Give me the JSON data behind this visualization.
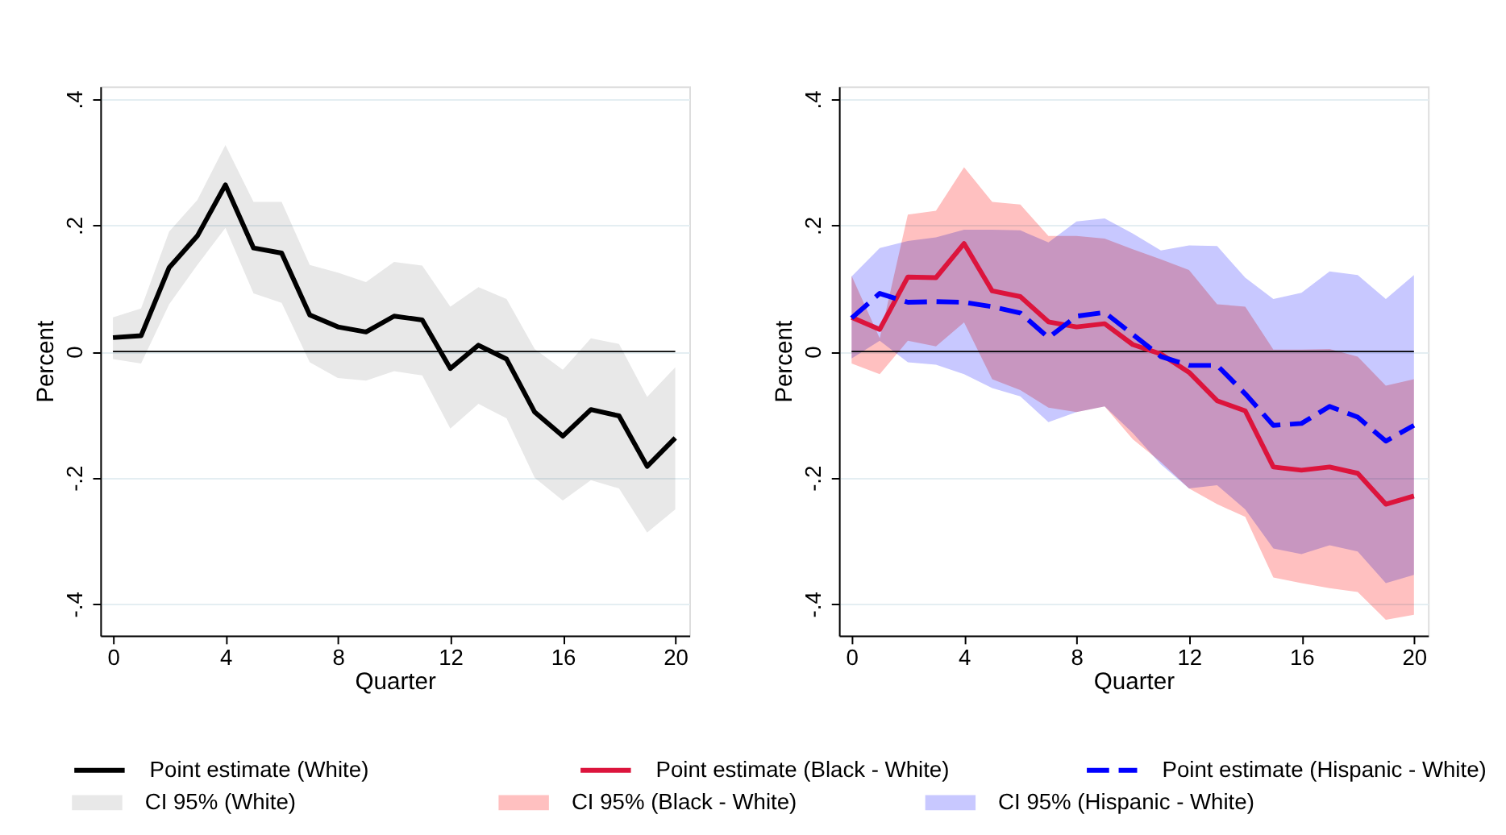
{
  "chart_data": [
    {
      "type": "line",
      "xlabel": "Quarter",
      "ylabel": "Percent",
      "x": [
        0,
        1,
        2,
        3,
        4,
        5,
        6,
        7,
        8,
        9,
        10,
        11,
        12,
        13,
        14,
        15,
        16,
        17,
        18,
        19,
        20
      ],
      "xlim": [
        -0.45,
        20.5
      ],
      "xticks": [
        0,
        4,
        8,
        12,
        16,
        20
      ],
      "ylim": [
        -0.45,
        0.42
      ],
      "yticks": [
        {
          "value": -0.4,
          "label": "-.4"
        },
        {
          "value": -0.2,
          "label": "-.2"
        },
        {
          "value": 0,
          "label": "0"
        },
        {
          "value": 0.2,
          "label": ".2"
        },
        {
          "value": 0.4,
          "label": ".4"
        }
      ],
      "grid": "y",
      "legend": "bottom",
      "ref_lines": [
        {
          "axis": "y",
          "value": 0,
          "color": "#000000"
        }
      ],
      "series": [
        {
          "name": "Point estimate (White)",
          "type": "line",
          "color": "#000000",
          "line_style": "solid",
          "values": [
            0.022,
            0.025,
            0.133,
            0.183,
            0.264,
            0.164,
            0.156,
            0.058,
            0.039,
            0.031,
            0.056,
            0.05,
            -0.027,
            0.01,
            -0.012,
            -0.096,
            -0.134,
            -0.092,
            -0.102,
            -0.182,
            -0.137
          ]
        },
        {
          "name": "CI 95% (White)",
          "type": "area",
          "color": "#e8e8e8",
          "values": [
            null,
            null,
            null,
            null,
            null,
            null,
            null,
            null,
            null,
            null,
            null,
            null,
            null,
            null,
            null,
            null,
            null,
            null,
            null,
            null,
            null
          ],
          "lower": [
            -0.012,
            -0.019,
            0.075,
            0.137,
            0.196,
            0.092,
            0.077,
            -0.017,
            -0.042,
            -0.046,
            -0.031,
            -0.038,
            -0.122,
            -0.083,
            -0.106,
            -0.2,
            -0.236,
            -0.204,
            -0.217,
            -0.287,
            -0.25
          ],
          "upper": [
            0.054,
            0.068,
            0.19,
            0.24,
            0.327,
            0.237,
            0.237,
            0.137,
            0.125,
            0.11,
            0.142,
            0.136,
            0.071,
            0.102,
            0.083,
            0.004,
            -0.029,
            0.021,
            0.012,
            -0.072,
            -0.025
          ]
        }
      ]
    },
    {
      "type": "line",
      "xlabel": "Quarter",
      "ylabel": "Percent",
      "x": [
        0,
        1,
        2,
        3,
        4,
        5,
        6,
        7,
        8,
        9,
        10,
        11,
        12,
        13,
        14,
        15,
        16,
        17,
        18,
        19,
        20
      ],
      "xlim": [
        -0.45,
        20.5
      ],
      "xticks": [
        0,
        4,
        8,
        12,
        16,
        20
      ],
      "ylim": [
        -0.45,
        0.42
      ],
      "yticks": [
        {
          "value": -0.4,
          "label": "-.4"
        },
        {
          "value": -0.2,
          "label": "-.2"
        },
        {
          "value": 0,
          "label": "0"
        },
        {
          "value": 0.2,
          "label": ".2"
        },
        {
          "value": 0.4,
          "label": ".4"
        }
      ],
      "grid": "y",
      "legend": "bottom",
      "ref_lines": [
        {
          "axis": "y",
          "value": 0,
          "color": "#000000"
        }
      ],
      "series": [
        {
          "name": "Point estimate (Black - White)",
          "type": "line",
          "color": "#dc143c",
          "line_style": "solid",
          "values": [
            0.054,
            0.035,
            0.118,
            0.117,
            0.171,
            0.096,
            0.087,
            0.047,
            0.039,
            0.044,
            0.011,
            -0.004,
            -0.033,
            -0.078,
            -0.094,
            -0.183,
            -0.188,
            -0.183,
            -0.193,
            -0.242,
            -0.229
          ]
        },
        {
          "name": "CI 95% (Black - White)",
          "type": "area",
          "color": "#ffc0c0",
          "values": [
            null,
            null,
            null,
            null,
            null,
            null,
            null,
            null,
            null,
            null,
            null,
            null,
            null,
            null,
            null,
            null,
            null,
            null,
            null,
            null,
            null
          ],
          "lower": [
            -0.019,
            -0.036,
            0.017,
            0.008,
            0.046,
            -0.044,
            -0.061,
            -0.089,
            -0.096,
            -0.087,
            -0.139,
            -0.175,
            -0.217,
            -0.242,
            -0.262,
            -0.358,
            -0.367,
            -0.375,
            -0.381,
            -0.425,
            -0.417
          ],
          "upper": [
            0.12,
            0.021,
            0.217,
            0.223,
            0.292,
            0.237,
            0.233,
            0.183,
            0.183,
            0.179,
            0.162,
            0.146,
            0.129,
            0.075,
            0.071,
            0.003,
            0.003,
            0.004,
            -0.008,
            -0.054,
            -0.044
          ]
        },
        {
          "name": "Point estimate (Hispanic - White)",
          "type": "line",
          "color": "#0000ff",
          "line_style": "dashed",
          "values": [
            0.053,
            0.092,
            0.078,
            0.079,
            0.078,
            0.071,
            0.061,
            0.022,
            0.056,
            0.062,
            0.027,
            -0.008,
            -0.022,
            -0.022,
            -0.067,
            -0.117,
            -0.114,
            -0.087,
            -0.104,
            -0.142,
            -0.117
          ]
        },
        {
          "name": "CI 95% (Hispanic - White)",
          "type": "area",
          "color": "#c8c8ff",
          "values": [
            null,
            null,
            null,
            null,
            null,
            null,
            null,
            null,
            null,
            null,
            null,
            null,
            null,
            null,
            null,
            null,
            null,
            null,
            null,
            null,
            null
          ],
          "lower": [
            -0.011,
            0.017,
            -0.017,
            -0.021,
            -0.036,
            -0.058,
            -0.071,
            -0.112,
            -0.096,
            -0.087,
            -0.129,
            -0.179,
            -0.217,
            -0.212,
            -0.25,
            -0.312,
            -0.321,
            -0.307,
            -0.317,
            -0.367,
            -0.354
          ],
          "upper": [
            0.119,
            0.164,
            0.175,
            0.181,
            0.193,
            0.193,
            0.192,
            0.173,
            0.206,
            0.211,
            0.187,
            0.16,
            0.168,
            0.167,
            0.117,
            0.083,
            0.093,
            0.127,
            0.121,
            0.083,
            0.121
          ]
        }
      ]
    }
  ]
}
